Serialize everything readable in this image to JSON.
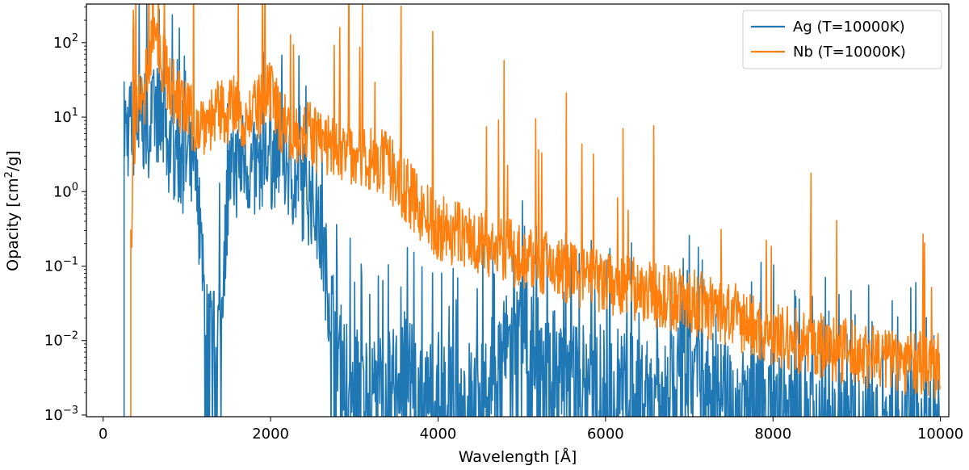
{
  "chart_data": {
    "type": "line",
    "title": "",
    "xlabel": "Wavelength [Å]",
    "ylabel": "Opacity [cm²/g]",
    "xlim": [
      -200,
      10100
    ],
    "ylim": [
      0.00095,
      330
    ],
    "yscale": "log",
    "grid": false,
    "legend_position": "top-right",
    "x_ticks": [
      0,
      2000,
      4000,
      6000,
      8000,
      10000
    ],
    "y_ticks": [
      {
        "value": 0.001,
        "base": "10",
        "exp": "−3"
      },
      {
        "value": 0.01,
        "base": "10",
        "exp": "−2"
      },
      {
        "value": 0.1,
        "base": "10",
        "exp": "−1"
      },
      {
        "value": 1,
        "base": "10",
        "exp": "0"
      },
      {
        "value": 10,
        "base": "10",
        "exp": "1"
      },
      {
        "value": 100,
        "base": "10",
        "exp": "2"
      }
    ],
    "series": [
      {
        "name": "Ag (T=10000K)",
        "color": "#1f77b4",
        "x": [
          250,
          300,
          350,
          400,
          450,
          500,
          550,
          600,
          650,
          700,
          750,
          800,
          850,
          900,
          950,
          1000,
          1050,
          1100,
          1150,
          1200,
          1250,
          1300,
          1350,
          1400,
          1450,
          1500,
          1600,
          1700,
          1800,
          1900,
          2000,
          2100,
          2200,
          2300,
          2400,
          2500,
          2600,
          2700,
          2800,
          2900,
          3000,
          3200,
          3400,
          3600,
          3800,
          4000,
          4500,
          5000,
          5500,
          6000,
          6500,
          7000,
          7500,
          8000,
          9000,
          10000
        ],
        "values": [
          9,
          8,
          7,
          12,
          10,
          9,
          9,
          11,
          14,
          9,
          6,
          5,
          4,
          3.5,
          3,
          2.5,
          2.3,
          1.8,
          0.5,
          0.05,
          0.02,
          0.015,
          0.01,
          0.03,
          0.2,
          2,
          2.5,
          3,
          2,
          3.5,
          3,
          4,
          2.5,
          1.5,
          1.2,
          1,
          0.3,
          0.05,
          0.01,
          0.005,
          0.004,
          0.003,
          0.003,
          0.005,
          0.003,
          0.002,
          0.003,
          0.02,
          0.005,
          0.004,
          0.003,
          0.005,
          0.002,
          0.002,
          0.001,
          0.001
        ]
      },
      {
        "name": "Nb (T=10000K)",
        "color": "#ff7f0e",
        "x": [
          330,
          400,
          450,
          500,
          550,
          600,
          650,
          700,
          750,
          800,
          900,
          1000,
          1100,
          1200,
          1300,
          1400,
          1500,
          1600,
          1700,
          1800,
          1900,
          2000,
          2100,
          2200,
          2300,
          2400,
          2500,
          2600,
          2800,
          3000,
          3200,
          3400,
          3600,
          3800,
          4000,
          4500,
          5000,
          5500,
          6000,
          6500,
          7000,
          7500,
          8000,
          8500,
          9000,
          9500,
          10000
        ],
        "values": [
          0.2,
          15,
          12,
          20,
          70,
          100,
          70,
          50,
          35,
          25,
          15,
          10,
          8,
          8,
          9,
          10,
          11,
          12,
          9,
          10,
          13,
          18,
          9,
          7,
          6,
          6,
          5,
          4,
          3.5,
          3,
          2.5,
          2,
          1,
          0.5,
          0.3,
          0.2,
          0.12,
          0.08,
          0.05,
          0.04,
          0.03,
          0.02,
          0.01,
          0.008,
          0.006,
          0.005,
          0.004
        ]
      }
    ]
  }
}
